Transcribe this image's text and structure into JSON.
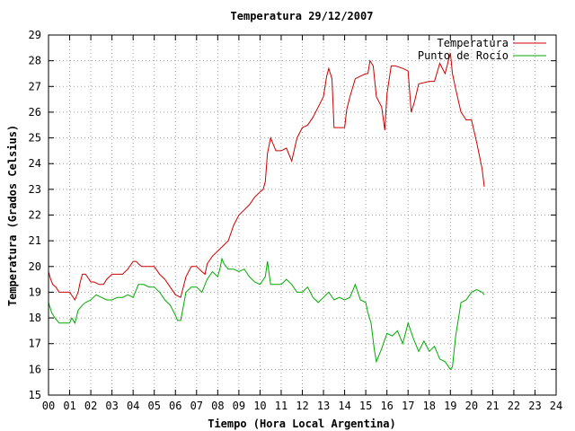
{
  "chart_data": {
    "type": "line",
    "title": "Temperatura 29/12/2007",
    "xlabel": "Tiempo (Hora Local Argentina)",
    "ylabel": "Temperatura (Grados Celsius)",
    "xlim": [
      0,
      24
    ],
    "ylim": [
      15,
      29
    ],
    "x_ticks": [
      "00",
      "01",
      "02",
      "03",
      "04",
      "05",
      "06",
      "07",
      "08",
      "09",
      "10",
      "11",
      "12",
      "13",
      "14",
      "15",
      "16",
      "17",
      "18",
      "19",
      "20",
      "21",
      "22",
      "23",
      "24"
    ],
    "y_ticks": [
      "15",
      "16",
      "17",
      "18",
      "19",
      "20",
      "21",
      "22",
      "23",
      "24",
      "25",
      "26",
      "27",
      "28",
      "29"
    ],
    "grid": true,
    "legend_position": "top-right",
    "series": [
      {
        "name": "Temperatura",
        "color": "#cc0000",
        "x": [
          0.0,
          0.1,
          0.2,
          0.35,
          0.5,
          0.6,
          0.75,
          1.0,
          1.25,
          1.4,
          1.5,
          1.6,
          1.75,
          2.0,
          2.15,
          2.4,
          2.6,
          2.75,
          3.0,
          3.25,
          3.5,
          3.75,
          4.0,
          4.15,
          4.25,
          4.4,
          4.6,
          4.75,
          5.0,
          5.25,
          5.5,
          5.75,
          6.0,
          6.25,
          6.5,
          6.75,
          7.0,
          7.25,
          7.4,
          7.5,
          7.75,
          8.0,
          8.25,
          8.5,
          8.75,
          9.0,
          9.25,
          9.5,
          9.75,
          10.0,
          10.15,
          10.25,
          10.35,
          10.5,
          10.75,
          11.0,
          11.25,
          11.5,
          11.75,
          12.0,
          12.25,
          12.5,
          12.75,
          13.0,
          13.15,
          13.25,
          13.4,
          13.5,
          14.0,
          14.1,
          14.25,
          14.5,
          14.75,
          15.0,
          15.1,
          15.2,
          15.35,
          15.5,
          15.75,
          15.9,
          16.0,
          16.2,
          16.4,
          16.75,
          17.0,
          17.15,
          17.3,
          17.5,
          18.0,
          18.25,
          18.5,
          18.75,
          19.0,
          19.1,
          19.25,
          19.5,
          19.75,
          20.0,
          20.25,
          20.5,
          20.6
        ],
        "values": [
          19.8,
          19.5,
          19.3,
          19.2,
          19.0,
          19.0,
          19.0,
          19.0,
          18.7,
          19.0,
          19.4,
          19.7,
          19.7,
          19.4,
          19.4,
          19.3,
          19.3,
          19.5,
          19.7,
          19.7,
          19.7,
          19.9,
          20.2,
          20.2,
          20.1,
          20.0,
          20.0,
          20.0,
          20.0,
          19.7,
          19.5,
          19.2,
          18.9,
          18.8,
          19.6,
          20.0,
          20.0,
          19.8,
          19.7,
          20.1,
          20.4,
          20.6,
          20.8,
          21.0,
          21.6,
          22.0,
          22.2,
          22.4,
          22.7,
          22.9,
          23.0,
          23.3,
          24.4,
          25.0,
          24.5,
          24.5,
          24.6,
          24.1,
          25.0,
          25.4,
          25.5,
          25.8,
          26.2,
          26.6,
          27.4,
          27.7,
          27.3,
          25.4,
          25.4,
          26.1,
          26.6,
          27.3,
          27.4,
          27.5,
          27.5,
          28.0,
          27.8,
          26.6,
          26.2,
          25.3,
          26.7,
          27.8,
          27.8,
          27.7,
          27.6,
          26.0,
          26.4,
          27.1,
          27.2,
          27.2,
          27.9,
          27.5,
          28.3,
          27.5,
          26.9,
          26.0,
          25.7,
          25.7,
          24.8,
          23.8,
          23.1
        ]
      },
      {
        "name": "Punto de Rocío",
        "color": "#00aa00",
        "x": [
          0.0,
          0.15,
          0.3,
          0.5,
          0.75,
          1.0,
          1.1,
          1.25,
          1.4,
          1.6,
          1.75,
          2.0,
          2.25,
          2.5,
          2.75,
          3.0,
          3.25,
          3.5,
          3.75,
          4.0,
          4.25,
          4.5,
          4.75,
          5.0,
          5.25,
          5.5,
          5.75,
          6.0,
          6.1,
          6.25,
          6.5,
          6.75,
          7.0,
          7.25,
          7.5,
          7.75,
          8.0,
          8.1,
          8.2,
          8.3,
          8.5,
          8.75,
          9.0,
          9.25,
          9.5,
          9.75,
          10.0,
          10.25,
          10.35,
          10.5,
          10.75,
          11.0,
          11.25,
          11.5,
          11.75,
          12.0,
          12.25,
          12.5,
          12.75,
          13.0,
          13.25,
          13.5,
          13.75,
          14.0,
          14.25,
          14.5,
          14.75,
          15.0,
          15.1,
          15.25,
          15.4,
          15.5,
          15.75,
          16.0,
          16.25,
          16.5,
          16.75,
          17.0,
          17.25,
          17.5,
          17.75,
          18.0,
          18.25,
          18.5,
          18.75,
          19.0,
          19.1,
          19.25,
          19.5,
          19.75,
          20.0,
          20.25,
          20.5,
          20.6
        ],
        "values": [
          18.6,
          18.2,
          18.0,
          17.8,
          17.8,
          17.8,
          18.0,
          17.8,
          18.3,
          18.5,
          18.6,
          18.7,
          18.9,
          18.8,
          18.7,
          18.7,
          18.8,
          18.8,
          18.9,
          18.8,
          19.3,
          19.3,
          19.2,
          19.2,
          19.0,
          18.7,
          18.5,
          18.1,
          17.9,
          17.9,
          19.0,
          19.2,
          19.2,
          19.0,
          19.5,
          19.8,
          19.6,
          19.9,
          20.3,
          20.1,
          19.9,
          19.9,
          19.8,
          19.9,
          19.6,
          19.4,
          19.3,
          19.6,
          20.2,
          19.3,
          19.3,
          19.3,
          19.5,
          19.3,
          19.0,
          19.0,
          19.2,
          18.8,
          18.6,
          18.8,
          19.0,
          18.7,
          18.8,
          18.7,
          18.8,
          19.3,
          18.7,
          18.6,
          18.2,
          17.8,
          16.8,
          16.3,
          16.8,
          17.4,
          17.3,
          17.5,
          17.0,
          17.8,
          17.2,
          16.7,
          17.1,
          16.7,
          16.9,
          16.4,
          16.3,
          16.0,
          16.1,
          17.3,
          18.6,
          18.7,
          19.0,
          19.1,
          19.0,
          18.9
        ]
      }
    ]
  }
}
